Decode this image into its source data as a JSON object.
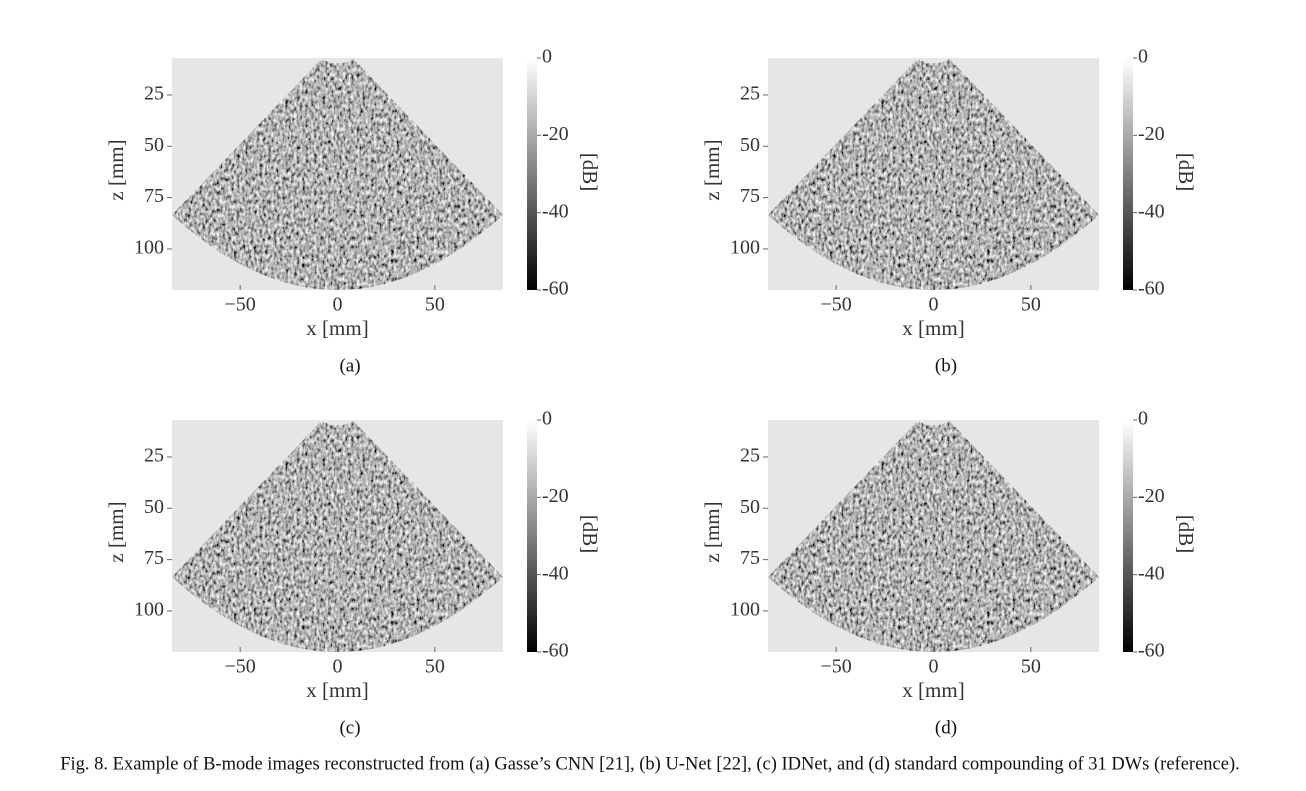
{
  "figure": {
    "axes": {
      "x_label": "x [mm]",
      "z_label": "z [mm]",
      "colorbar_label": "[dB]",
      "xlim": [
        -85,
        85
      ],
      "zlim": [
        7,
        120
      ],
      "clim": [
        0,
        -60
      ],
      "xticks": [
        {
          "value": -50,
          "label": "−50"
        },
        0,
        50
      ],
      "zticks": [
        25,
        50,
        75,
        100
      ],
      "cticks": [
        0,
        -20,
        -40,
        -60
      ]
    },
    "panels": [
      "(a)",
      "(b)",
      "(c)",
      "(d)"
    ],
    "caption": "Fig. 8.  Example of B-mode images reconstructed from (a) Gasse’s CNN [21], (b) U-Net [22], (c) IDNet, and (d) standard compounding of 31 DWs (reference)."
  }
}
